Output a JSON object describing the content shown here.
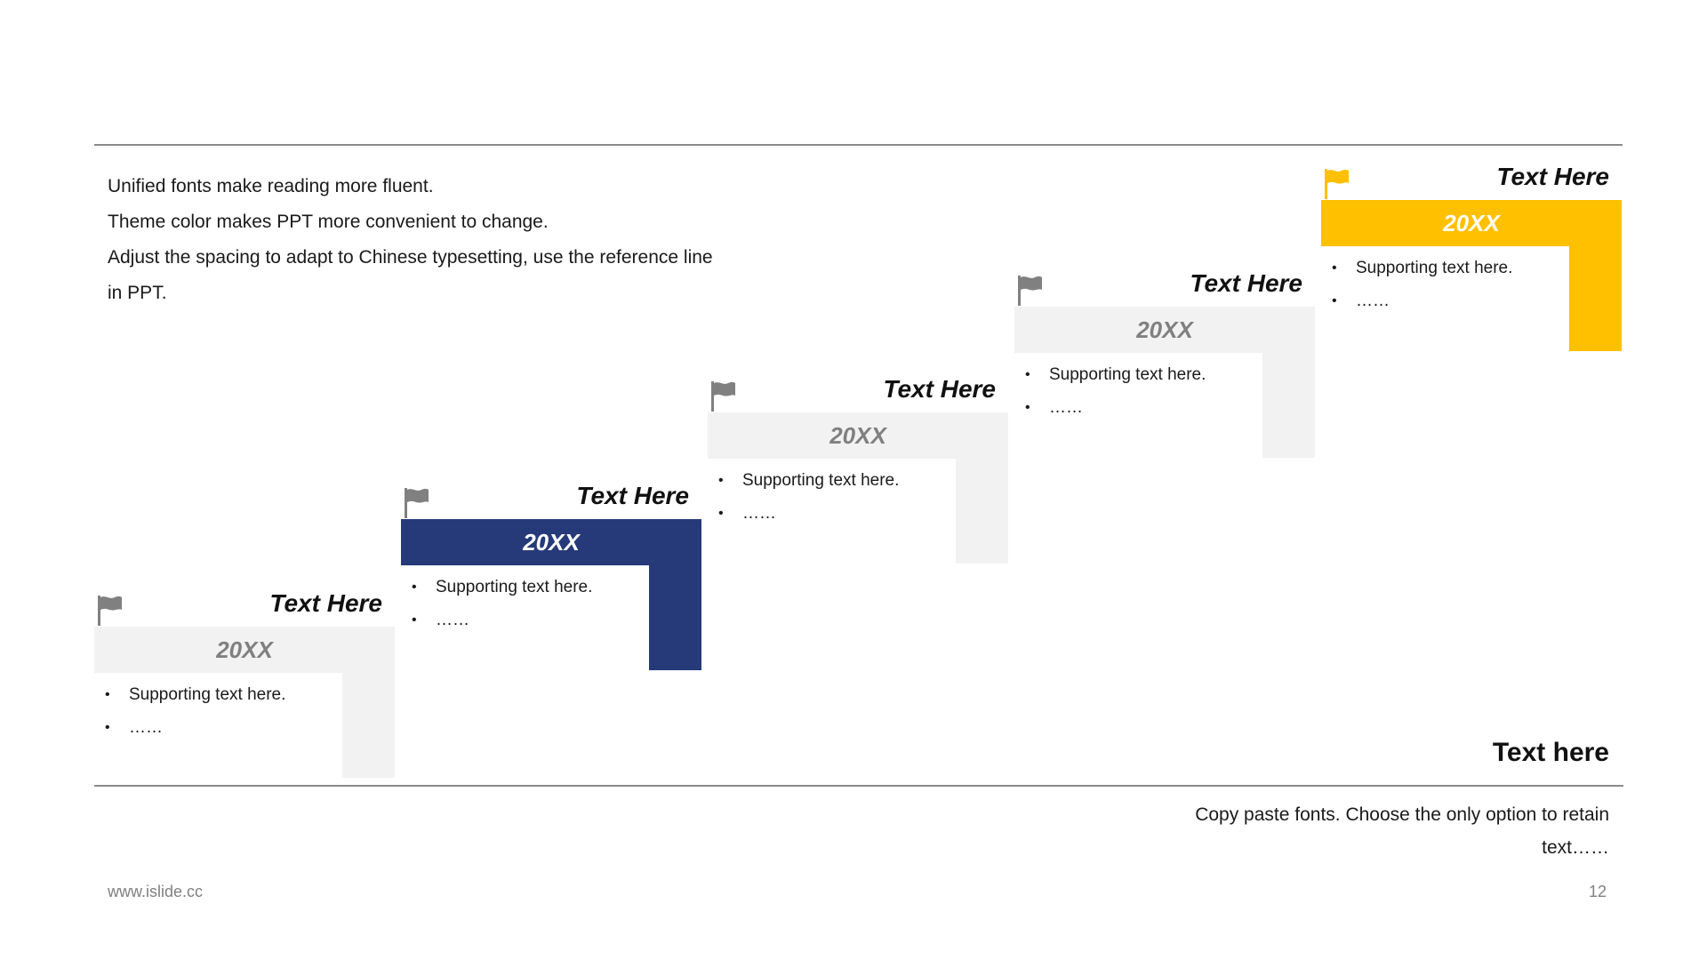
{
  "intro": [
    "Unified fonts make reading more fluent.",
    "Theme color makes PPT more convenient to change.",
    "Adjust the spacing to adapt to Chinese typesetting, use the reference line",
    "in PPT."
  ],
  "steps": [
    {
      "title": "Text Here",
      "year": "20XX",
      "bullets": [
        "Supporting text here.",
        "……"
      ],
      "flag_icon": "flag-icon",
      "color": "#F2F2F2",
      "flag_color": "#808080"
    },
    {
      "title": "Text Here",
      "year": "20XX",
      "bullets": [
        "Supporting text here.",
        "……"
      ],
      "flag_icon": "flag-icon",
      "color": "#263A7A",
      "flag_color": "#808080"
    },
    {
      "title": "Text Here",
      "year": "20XX",
      "bullets": [
        "Supporting text here.",
        "……"
      ],
      "flag_icon": "flag-icon",
      "color": "#F2F2F2",
      "flag_color": "#808080"
    },
    {
      "title": "Text Here",
      "year": "20XX",
      "bullets": [
        "Supporting text here.",
        "……"
      ],
      "flag_icon": "flag-icon",
      "color": "#F2F2F2",
      "flag_color": "#808080"
    },
    {
      "title": "Text Here",
      "year": "20XX",
      "bullets": [
        "Supporting text here.",
        "……"
      ],
      "flag_icon": "flag-icon",
      "color": "#FFC000",
      "flag_color": "#FFC000"
    }
  ],
  "footer": {
    "title": "Text here",
    "text": "Copy paste fonts. Choose the only option to retain text……",
    "url": "www.islide.cc",
    "page_number": "12"
  }
}
